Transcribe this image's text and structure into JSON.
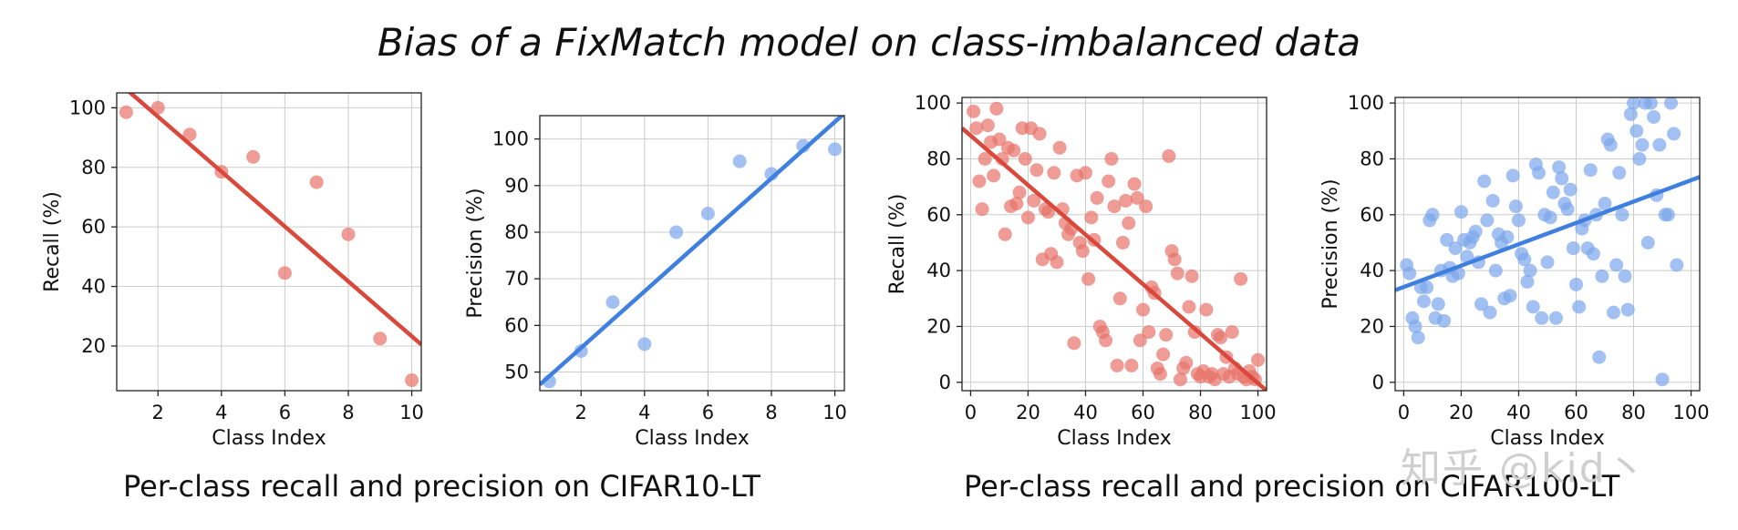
{
  "title": "Bias of a FixMatch model on class-imbalanced data",
  "captions": {
    "left": "Per-class recall and precision on CIFAR10-LT",
    "right": "Per-class recall and precision on CIFAR100-LT"
  },
  "watermark": "知乎 @kid丶",
  "colors": {
    "red": "#d9483b",
    "red_point": "#e8766c",
    "blue": "#3f7fe0",
    "blue_point": "#7ea8ec"
  },
  "chart_data": [
    {
      "type": "scatter",
      "xlabel": "Class Index",
      "ylabel": "Recall (%)",
      "xlim": [
        0.7,
        10.3
      ],
      "ylim": [
        5,
        105
      ],
      "xticks": [
        2,
        4,
        6,
        8,
        10
      ],
      "yticks": [
        20,
        40,
        60,
        80,
        100
      ],
      "grid": true,
      "color": "red",
      "points": [
        [
          1,
          98.5
        ],
        [
          2,
          100
        ],
        [
          3,
          91
        ],
        [
          4,
          78.5
        ],
        [
          5,
          83.5
        ],
        [
          6,
          44.5
        ],
        [
          7,
          75
        ],
        [
          8,
          57.5
        ],
        [
          9,
          22.5
        ],
        [
          10,
          8.5
        ]
      ],
      "fit_line": [
        [
          0.7,
          109
        ],
        [
          10.3,
          20.5
        ]
      ]
    },
    {
      "type": "scatter",
      "xlabel": "Class Index",
      "ylabel": "Precision (%)",
      "xlim": [
        0.7,
        10.3
      ],
      "ylim": [
        46,
        105
      ],
      "xticks": [
        2,
        4,
        6,
        8,
        10
      ],
      "yticks": [
        50,
        60,
        70,
        80,
        90,
        100
      ],
      "grid": true,
      "color": "blue",
      "points": [
        [
          1,
          48
        ],
        [
          2,
          54.5
        ],
        [
          3,
          65
        ],
        [
          4,
          56
        ],
        [
          5,
          80
        ],
        [
          6,
          84
        ],
        [
          7,
          95.2
        ],
        [
          8,
          92.5
        ],
        [
          9,
          98.5
        ],
        [
          10,
          97.8
        ]
      ],
      "fit_line": [
        [
          0.7,
          47.3
        ],
        [
          10.3,
          105.5
        ]
      ]
    },
    {
      "type": "scatter",
      "xlabel": "Class Index",
      "ylabel": "Recall (%)",
      "xlim": [
        -3,
        103
      ],
      "ylim": [
        -3,
        102
      ],
      "xticks": [
        0,
        20,
        40,
        60,
        80,
        100
      ],
      "yticks": [
        0,
        20,
        40,
        60,
        80,
        100
      ],
      "grid": true,
      "color": "red",
      "points": [
        [
          1,
          97
        ],
        [
          2,
          91
        ],
        [
          3,
          72
        ],
        [
          4,
          62
        ],
        [
          5,
          80
        ],
        [
          6,
          92
        ],
        [
          7,
          86
        ],
        [
          8,
          74
        ],
        [
          9,
          98
        ],
        [
          10,
          87
        ],
        [
          11,
          80
        ],
        [
          12,
          53
        ],
        [
          13,
          84
        ],
        [
          14,
          63
        ],
        [
          15,
          83
        ],
        [
          16,
          64
        ],
        [
          17,
          68
        ],
        [
          18,
          91
        ],
        [
          19,
          80
        ],
        [
          20,
          59
        ],
        [
          21,
          91
        ],
        [
          22,
          65
        ],
        [
          23,
          76
        ],
        [
          24,
          89
        ],
        [
          25,
          44
        ],
        [
          26,
          62
        ],
        [
          27,
          61
        ],
        [
          28,
          46
        ],
        [
          29,
          75
        ],
        [
          30,
          43
        ],
        [
          31,
          84
        ],
        [
          32,
          62
        ],
        [
          33,
          57
        ],
        [
          34,
          53
        ],
        [
          35,
          55
        ],
        [
          36,
          14
        ],
        [
          37,
          74
        ],
        [
          38,
          50
        ],
        [
          39,
          47
        ],
        [
          40,
          75
        ],
        [
          41,
          37
        ],
        [
          42,
          59
        ],
        [
          43,
          51
        ],
        [
          44,
          66
        ],
        [
          45,
          20
        ],
        [
          46,
          18
        ],
        [
          47,
          15
        ],
        [
          48,
          72
        ],
        [
          49,
          80
        ],
        [
          50,
          63
        ],
        [
          51,
          6
        ],
        [
          52,
          30
        ],
        [
          53,
          50
        ],
        [
          54,
          65
        ],
        [
          55,
          57
        ],
        [
          56,
          6
        ],
        [
          57,
          71
        ],
        [
          58,
          66
        ],
        [
          59,
          15
        ],
        [
          60,
          26
        ],
        [
          61,
          63
        ],
        [
          62,
          18
        ],
        [
          63,
          34
        ],
        [
          64,
          32
        ],
        [
          65,
          5
        ],
        [
          66,
          3
        ],
        [
          67,
          10
        ],
        [
          68,
          17
        ],
        [
          69,
          81
        ],
        [
          70,
          47
        ],
        [
          71,
          44
        ],
        [
          72,
          39
        ],
        [
          73,
          1
        ],
        [
          74,
          5
        ],
        [
          75,
          7
        ],
        [
          76,
          27
        ],
        [
          77,
          38
        ],
        [
          78,
          18
        ],
        [
          79,
          3
        ],
        [
          80,
          2
        ],
        [
          81,
          4
        ],
        [
          82,
          26
        ],
        [
          83,
          2
        ],
        [
          84,
          3
        ],
        [
          85,
          1
        ],
        [
          86,
          17
        ],
        [
          87,
          16
        ],
        [
          88,
          3
        ],
        [
          89,
          9
        ],
        [
          90,
          2
        ],
        [
          91,
          18
        ],
        [
          92,
          5
        ],
        [
          93,
          3
        ],
        [
          94,
          37
        ],
        [
          95,
          2
        ],
        [
          96,
          1
        ],
        [
          97,
          4
        ],
        [
          98,
          2
        ],
        [
          99,
          1
        ],
        [
          100,
          8
        ]
      ],
      "fit_line": [
        [
          -3,
          91
        ],
        [
          103,
          -3
        ]
      ]
    },
    {
      "type": "scatter",
      "xlabel": "Class Index",
      "ylabel": "Precision (%)",
      "xlim": [
        -3,
        103
      ],
      "ylim": [
        -3,
        102
      ],
      "xticks": [
        0,
        20,
        40,
        60,
        80,
        100
      ],
      "yticks": [
        0,
        20,
        40,
        60,
        80,
        100
      ],
      "grid": true,
      "color": "blue",
      "points": [
        [
          1,
          42
        ],
        [
          2,
          39
        ],
        [
          3,
          23
        ],
        [
          4,
          20
        ],
        [
          5,
          16
        ],
        [
          6,
          34
        ],
        [
          7,
          29
        ],
        [
          8,
          34
        ],
        [
          9,
          58
        ],
        [
          10,
          60
        ],
        [
          11,
          23
        ],
        [
          12,
          28
        ],
        [
          13,
          40
        ],
        [
          14,
          22
        ],
        [
          15,
          51
        ],
        [
          16,
          41
        ],
        [
          17,
          38
        ],
        [
          18,
          48
        ],
        [
          19,
          39
        ],
        [
          20,
          61
        ],
        [
          21,
          51
        ],
        [
          22,
          45
        ],
        [
          23,
          50
        ],
        [
          24,
          52
        ],
        [
          25,
          54
        ],
        [
          26,
          43
        ],
        [
          27,
          28
        ],
        [
          28,
          72
        ],
        [
          29,
          58
        ],
        [
          30,
          25
        ],
        [
          31,
          65
        ],
        [
          32,
          40
        ],
        [
          33,
          53
        ],
        [
          34,
          50
        ],
        [
          35,
          30
        ],
        [
          36,
          52
        ],
        [
          37,
          31
        ],
        [
          38,
          74
        ],
        [
          39,
          63
        ],
        [
          40,
          58
        ],
        [
          41,
          46
        ],
        [
          42,
          44
        ],
        [
          43,
          36
        ],
        [
          44,
          40
        ],
        [
          45,
          27
        ],
        [
          46,
          78
        ],
        [
          47,
          75
        ],
        [
          48,
          23
        ],
        [
          49,
          60
        ],
        [
          50,
          43
        ],
        [
          51,
          59
        ],
        [
          52,
          68
        ],
        [
          53,
          23
        ],
        [
          54,
          77
        ],
        [
          55,
          73
        ],
        [
          56,
          64
        ],
        [
          57,
          62
        ],
        [
          58,
          69
        ],
        [
          59,
          48
        ],
        [
          60,
          35
        ],
        [
          61,
          27
        ],
        [
          62,
          55
        ],
        [
          63,
          58
        ],
        [
          64,
          48
        ],
        [
          65,
          76
        ],
        [
          66,
          46
        ],
        [
          67,
          60
        ],
        [
          68,
          9
        ],
        [
          69,
          38
        ],
        [
          70,
          64
        ],
        [
          71,
          87
        ],
        [
          72,
          85
        ],
        [
          73,
          25
        ],
        [
          74,
          42
        ],
        [
          75,
          75
        ],
        [
          76,
          60
        ],
        [
          77,
          38
        ],
        [
          78,
          26
        ],
        [
          79,
          96
        ],
        [
          80,
          100
        ],
        [
          81,
          90
        ],
        [
          82,
          80
        ],
        [
          83,
          85
        ],
        [
          84,
          100
        ],
        [
          85,
          50
        ],
        [
          86,
          100
        ],
        [
          87,
          95
        ],
        [
          88,
          67
        ],
        [
          89,
          85
        ],
        [
          90,
          1
        ],
        [
          91,
          60
        ],
        [
          92,
          60
        ],
        [
          93,
          100
        ],
        [
          94,
          89
        ],
        [
          95,
          42
        ]
      ],
      "fit_line": [
        [
          -3,
          33
        ],
        [
          103,
          73.5
        ]
      ]
    }
  ]
}
